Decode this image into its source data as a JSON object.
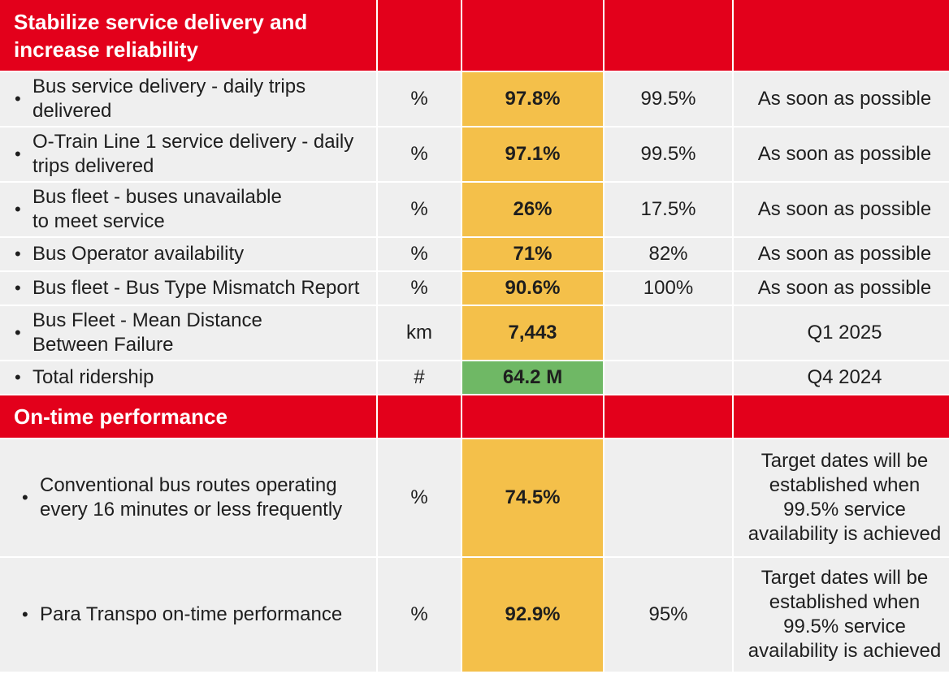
{
  "colors": {
    "header_red": "#e3001b",
    "row_gray": "#efefef",
    "status_amber": "#f4c04a",
    "status_green": "#6fb865"
  },
  "sections": [
    {
      "title_line1": "Stabilize service delivery and",
      "title_line2": "increase reliability",
      "rows": [
        {
          "metric_line1": "Bus service delivery - daily trips",
          "metric_line2": "delivered",
          "unit": "%",
          "value": "97.8%",
          "status": "amber",
          "target": "99.5%",
          "target_date": "As soon as possible"
        },
        {
          "metric_line1": "O-Train Line 1 service delivery - daily",
          "metric_line2": "trips delivered",
          "unit": "%",
          "value": "97.1%",
          "status": "amber",
          "target": "99.5%",
          "target_date": "As soon as possible"
        },
        {
          "metric_line1": "Bus fleet - buses unavailable",
          "metric_line2": "to meet service",
          "unit": "%",
          "value": "26%",
          "status": "amber",
          "target": "17.5%",
          "target_date": "As soon as possible"
        },
        {
          "metric_line1": "Bus Operator availability",
          "unit": "%",
          "value": "71%",
          "status": "amber",
          "target": "82%",
          "target_date": "As soon as possible"
        },
        {
          "metric_line1": "Bus fleet - Bus Type Mismatch Report",
          "unit": "%",
          "value": "90.6%",
          "status": "amber",
          "target": "100%",
          "target_date": "As soon as possible"
        },
        {
          "metric_line1": "Bus Fleet - Mean Distance",
          "metric_line2": "Between Failure",
          "unit": "km",
          "value": "7,443",
          "status": "amber",
          "target": "",
          "target_date": "Q1 2025"
        },
        {
          "metric_line1": "Total ridership",
          "unit": "#",
          "value": "64.2 M",
          "status": "green",
          "target": "",
          "target_date": "Q4 2024"
        }
      ]
    },
    {
      "title_line1": "On-time performance",
      "rows": [
        {
          "metric_line1": "Conventional bus routes operating",
          "metric_line2": "every 16 minutes or less frequently",
          "unit": "%",
          "value": "74.5%",
          "status": "amber",
          "target": "",
          "target_date_lines": [
            "Target dates will be",
            "established when",
            "99.5% service",
            "availability is achieved"
          ]
        },
        {
          "metric_line1": "Para Transpo on-time performance",
          "unit": "%",
          "value": "92.9%",
          "status": "amber",
          "target": "95%",
          "target_date_lines": [
            "Target dates will be",
            "established when",
            "99.5% service",
            "availability is achieved"
          ]
        }
      ]
    }
  ]
}
